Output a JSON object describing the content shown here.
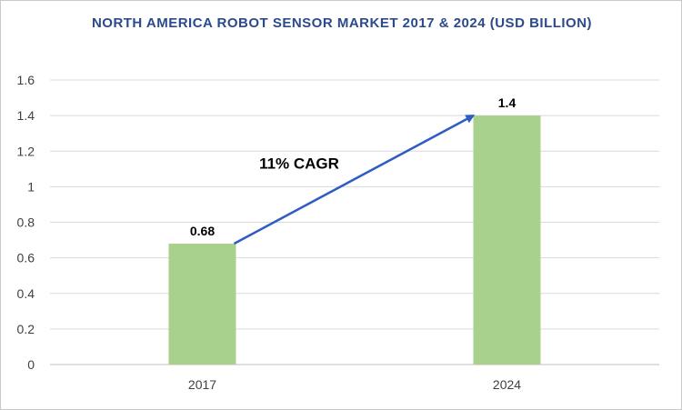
{
  "chart_data": {
    "type": "bar",
    "title": "NORTH AMERICA ROBOT SENSOR MARKET 2017 & 2024 (USD BILLION)",
    "categories": [
      "2017",
      "2024"
    ],
    "values": [
      0.68,
      1.4
    ],
    "data_labels": [
      "0.68",
      "1.4"
    ],
    "xlabel": "",
    "ylabel": "",
    "ylim": [
      0,
      1.6
    ],
    "yticks": [
      0,
      0.2,
      0.4,
      0.6,
      0.8,
      1,
      1.2,
      1.4,
      1.6
    ],
    "ytick_labels": [
      "0",
      "0.2",
      "0.4",
      "0.6",
      "0.8",
      "1",
      "1.2",
      "1.4",
      "1.6"
    ],
    "grid": true,
    "legend": "none",
    "annotation": {
      "text": "11% CAGR",
      "arrow_from": "2017",
      "arrow_to": "2024"
    },
    "colors": {
      "bar": "#a9d18e",
      "arrow": "#2f5cc4",
      "title": "#2b4a8b",
      "grid": "#d9d9d9"
    }
  }
}
